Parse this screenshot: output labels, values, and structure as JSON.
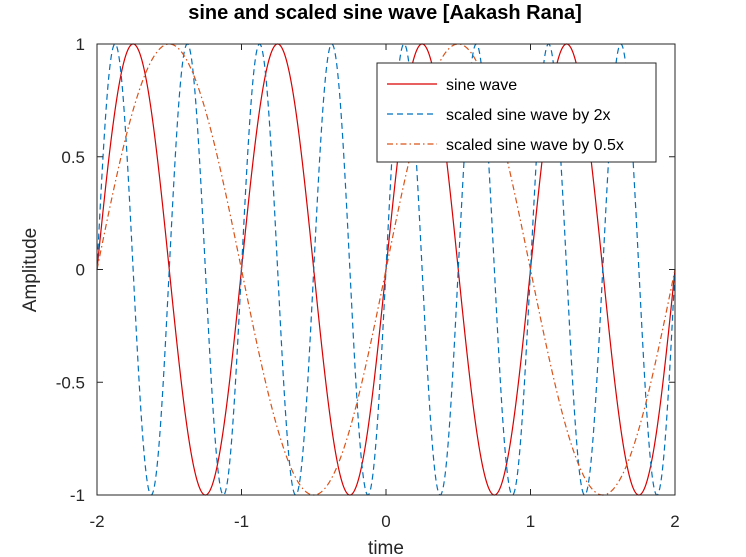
{
  "chart_data": {
    "type": "line",
    "title": "sine and scaled sine wave [Aakash Rana]",
    "xlabel": "time",
    "ylabel": "Amplitude",
    "xlim": [
      -2,
      2
    ],
    "ylim": [
      -1,
      1
    ],
    "xticks": [
      -2,
      -1,
      0,
      1,
      2
    ],
    "xtick_labels": [
      "-2",
      "-1",
      "0",
      "1",
      "2"
    ],
    "yticks": [
      -1,
      -0.5,
      0,
      0.5,
      1
    ],
    "ytick_labels": [
      "-1",
      "-0.5",
      "0",
      "0.5",
      "1"
    ],
    "grid": false,
    "legend_position": "top-right",
    "series": [
      {
        "name": "sine wave",
        "function": "sin(2*pi*t)",
        "color": "#d90000",
        "dash": "solid",
        "x": [
          -2.0,
          -1.75,
          -1.5,
          -1.25,
          -1.0,
          -0.75,
          -0.5,
          -0.25,
          0.0,
          0.25,
          0.5,
          0.75,
          1.0,
          1.25,
          1.5,
          1.75,
          2.0
        ],
        "y": [
          0,
          1,
          0,
          -1,
          0,
          1,
          0,
          -1,
          0,
          1,
          0,
          -1,
          0,
          1,
          0,
          -1,
          0
        ]
      },
      {
        "name": "scaled sine wave by 2x",
        "function": "sin(4*pi*t)",
        "color": "#0072bd",
        "dash": "dashed",
        "x": [
          -2.0,
          -1.875,
          -1.75,
          -1.625,
          -1.5,
          -1.375,
          -1.25,
          -1.125,
          -1.0,
          -0.875,
          -0.75,
          -0.625,
          -0.5,
          -0.375,
          -0.25,
          -0.125,
          0.0,
          0.125,
          0.25,
          0.375,
          0.5,
          0.625,
          0.75,
          0.875,
          1.0,
          1.125,
          1.25,
          1.375,
          1.5,
          1.625,
          1.75,
          1.875,
          2.0
        ],
        "y": [
          0,
          1,
          0,
          -1,
          0,
          1,
          0,
          -1,
          0,
          1,
          0,
          -1,
          0,
          1,
          0,
          -1,
          0,
          1,
          0,
          -1,
          0,
          1,
          0,
          -1,
          0,
          1,
          0,
          -1,
          0,
          1,
          0,
          -1,
          0
        ]
      },
      {
        "name": "scaled sine wave by 0.5x",
        "function": "sin(pi*t)",
        "color": "#d95319",
        "dash": "dashdot",
        "x": [
          -2.0,
          -1.5,
          -1.0,
          -0.5,
          0.0,
          0.5,
          1.0,
          1.5,
          2.0
        ],
        "y": [
          0,
          1,
          0,
          -1,
          0,
          1,
          0,
          -1,
          0
        ]
      }
    ]
  }
}
